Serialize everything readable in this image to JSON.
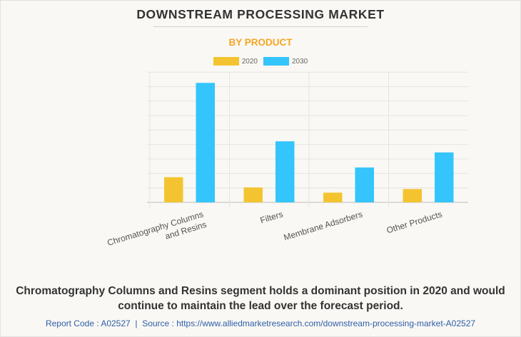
{
  "title": "DOWNSTREAM PROCESSING MARKET",
  "subtitle": "BY PRODUCT",
  "caption": "Chromatography Columns and Resins segment holds a dominant position in 2020 and would continue to maintain the lead over the forecast period.",
  "source": {
    "report_code_label": "Report Code : A02527",
    "separator": "|",
    "source_label": "Source : https://www.alliedmarketresearch.com/downstream-processing-market-A02527"
  },
  "colors": {
    "2020": "#f4c430",
    "2030": "#33c5fb",
    "subtitle": "#f5a623",
    "source_link": "#2f5ea8"
  },
  "chart_data": {
    "type": "bar",
    "title": "DOWNSTREAM PROCESSING MARKET",
    "subtitle": "BY PRODUCT",
    "xlabel": "",
    "ylabel": "",
    "ylim": [
      0,
      9
    ],
    "grid": true,
    "legend": "top-center",
    "categories": [
      [
        "Chromatography Columns",
        "and Resins"
      ],
      [
        "Filters"
      ],
      [
        "Membrane Adsorbers"
      ],
      [
        "Other Products"
      ]
    ],
    "series": [
      {
        "name": "2020",
        "color": "#f4c430",
        "values": [
          1.74,
          1.03,
          0.67,
          0.92
        ]
      },
      {
        "name": "2030",
        "color": "#33c5fb",
        "values": [
          8.26,
          4.22,
          2.41,
          3.45
        ]
      }
    ]
  }
}
